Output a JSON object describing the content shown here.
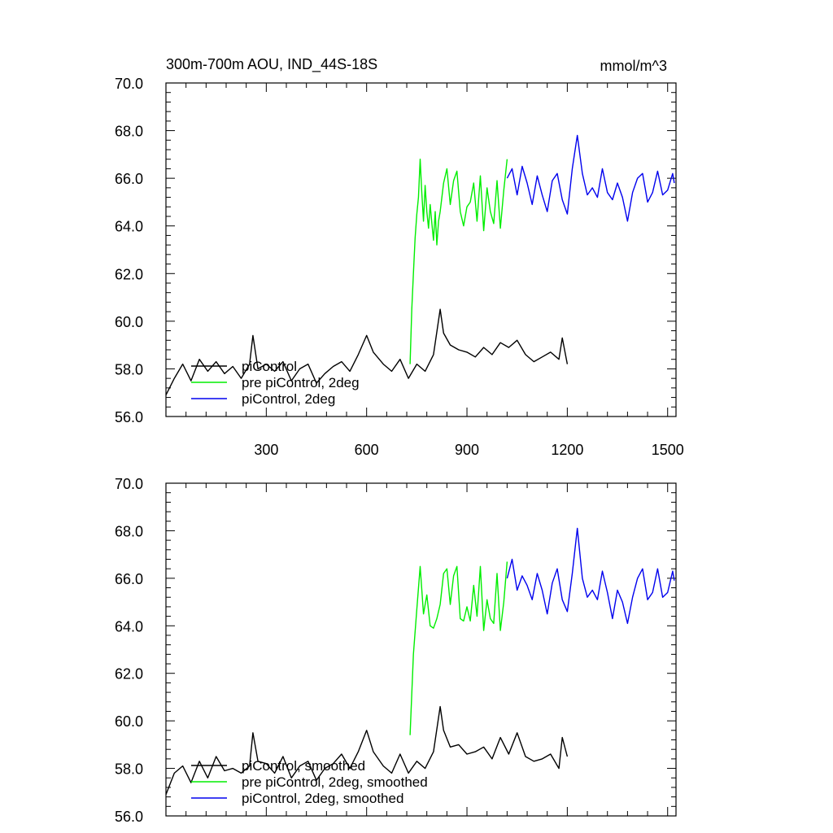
{
  "figure": {
    "title_left": "300m-700m AOU, IND_44S-18S",
    "title_right": "mmol/m^3"
  },
  "chart_data": [
    {
      "type": "line",
      "xlim": [
        0,
        1525
      ],
      "ylim": [
        56.0,
        70.0
      ],
      "xticks": [
        300,
        600,
        900,
        1200,
        1500
      ],
      "xtick_labels_shown": true,
      "yticks": [
        56.0,
        58.0,
        60.0,
        62.0,
        64.0,
        66.0,
        68.0,
        70.0
      ],
      "legend_position": "bottom-left",
      "series": [
        {
          "name": "piControl",
          "color": "#000000",
          "x": [
            0,
            25,
            50,
            75,
            100,
            125,
            150,
            175,
            200,
            225,
            250,
            260,
            275,
            300,
            325,
            350,
            375,
            400,
            425,
            450,
            475,
            500,
            525,
            550,
            575,
            600,
            620,
            650,
            675,
            700,
            725,
            750,
            775,
            800,
            820,
            830,
            850,
            875,
            900,
            925,
            950,
            975,
            1000,
            1025,
            1050,
            1075,
            1100,
            1125,
            1150,
            1175,
            1185,
            1200
          ],
          "y": [
            56.9,
            57.6,
            58.2,
            57.5,
            58.4,
            57.9,
            58.3,
            57.8,
            58.1,
            57.6,
            58.2,
            59.4,
            58.0,
            58.2,
            57.9,
            58.3,
            57.5,
            58.0,
            58.2,
            57.4,
            57.8,
            58.1,
            58.3,
            57.9,
            58.6,
            59.4,
            58.7,
            58.2,
            57.9,
            58.4,
            57.6,
            58.2,
            57.9,
            58.6,
            60.5,
            59.5,
            59.0,
            58.8,
            58.7,
            58.5,
            58.9,
            58.6,
            59.1,
            58.9,
            59.2,
            58.6,
            58.3,
            58.5,
            58.7,
            58.4,
            59.3,
            58.2
          ]
        },
        {
          "name": "pre piControl, 2deg",
          "color": "#00ee00",
          "x": [
            730,
            735,
            740,
            745,
            750,
            755,
            760,
            765,
            770,
            775,
            780,
            785,
            790,
            795,
            800,
            805,
            810,
            815,
            820,
            830,
            840,
            850,
            860,
            870,
            880,
            890,
            900,
            910,
            920,
            930,
            940,
            950,
            960,
            970,
            980,
            990,
            1000,
            1010,
            1020
          ],
          "y": [
            58.2,
            60.5,
            62.0,
            63.5,
            64.5,
            65.2,
            66.8,
            65.4,
            64.2,
            65.7,
            64.6,
            63.9,
            64.9,
            64.1,
            63.4,
            64.6,
            63.2,
            64.2,
            64.6,
            65.8,
            66.4,
            64.9,
            65.9,
            66.3,
            64.6,
            64.0,
            64.8,
            65.0,
            65.8,
            64.2,
            66.1,
            63.8,
            65.6,
            64.6,
            64.1,
            65.9,
            63.9,
            65.5,
            66.8
          ]
        },
        {
          "name": "piControl, 2deg",
          "color": "#0000ee",
          "x": [
            1020,
            1035,
            1050,
            1065,
            1080,
            1095,
            1110,
            1125,
            1140,
            1155,
            1170,
            1185,
            1200,
            1215,
            1230,
            1245,
            1260,
            1275,
            1290,
            1305,
            1320,
            1335,
            1350,
            1365,
            1380,
            1395,
            1410,
            1425,
            1440,
            1455,
            1470,
            1485,
            1500,
            1515,
            1520
          ],
          "y": [
            66.0,
            66.4,
            65.3,
            66.5,
            65.8,
            64.9,
            66.1,
            65.3,
            64.6,
            65.9,
            66.2,
            65.1,
            64.5,
            66.4,
            67.8,
            66.2,
            65.3,
            65.6,
            65.2,
            66.4,
            65.4,
            65.1,
            65.8,
            65.2,
            64.2,
            65.4,
            66.0,
            66.2,
            65.0,
            65.4,
            66.3,
            65.3,
            65.5,
            66.2,
            65.8
          ]
        }
      ]
    },
    {
      "type": "line",
      "xlim": [
        0,
        1525
      ],
      "ylim": [
        56.0,
        70.0
      ],
      "xticks": [
        300,
        600,
        900,
        1200,
        1500
      ],
      "xtick_labels_shown": false,
      "yticks": [
        56.0,
        58.0,
        60.0,
        62.0,
        64.0,
        66.0,
        68.0,
        70.0
      ],
      "legend_position": "bottom-left",
      "series": [
        {
          "name": "piControl, smoothed",
          "color": "#000000",
          "x": [
            0,
            25,
            50,
            75,
            100,
            125,
            150,
            175,
            200,
            225,
            250,
            260,
            275,
            300,
            325,
            350,
            375,
            400,
            425,
            450,
            475,
            500,
            525,
            550,
            575,
            600,
            620,
            650,
            675,
            700,
            725,
            750,
            775,
            800,
            820,
            830,
            850,
            875,
            900,
            925,
            950,
            975,
            1000,
            1025,
            1050,
            1075,
            1100,
            1125,
            1150,
            1175,
            1185,
            1200
          ],
          "y": [
            56.9,
            57.8,
            58.1,
            57.4,
            58.3,
            57.6,
            58.5,
            57.9,
            58.0,
            57.8,
            58.1,
            59.5,
            58.3,
            58.2,
            57.8,
            58.5,
            57.6,
            58.1,
            58.3,
            57.5,
            58.0,
            58.2,
            58.6,
            58.0,
            58.7,
            59.6,
            58.7,
            58.1,
            57.8,
            58.6,
            57.8,
            58.3,
            58.0,
            58.7,
            60.6,
            59.6,
            58.9,
            59.0,
            58.6,
            58.7,
            58.9,
            58.4,
            59.3,
            58.6,
            59.5,
            58.5,
            58.3,
            58.4,
            58.6,
            58.0,
            59.3,
            58.5
          ]
        },
        {
          "name": "pre piControl, 2deg, smoothed",
          "color": "#00ee00",
          "x": [
            730,
            740,
            750,
            760,
            770,
            780,
            790,
            800,
            810,
            820,
            830,
            840,
            850,
            860,
            870,
            880,
            890,
            900,
            910,
            920,
            930,
            940,
            950,
            960,
            970,
            980,
            990,
            1000,
            1010,
            1020
          ],
          "y": [
            59.4,
            62.8,
            64.7,
            66.5,
            64.5,
            65.3,
            64.0,
            63.9,
            64.3,
            64.9,
            66.2,
            66.4,
            64.9,
            66.1,
            66.5,
            64.3,
            64.2,
            64.8,
            64.2,
            65.7,
            64.4,
            66.5,
            63.8,
            65.1,
            64.3,
            64.1,
            66.2,
            63.8,
            65.0,
            66.7
          ]
        },
        {
          "name": "piControl, 2deg, smoothed",
          "color": "#0000ee",
          "x": [
            1020,
            1035,
            1050,
            1065,
            1080,
            1095,
            1110,
            1125,
            1140,
            1155,
            1170,
            1185,
            1200,
            1215,
            1230,
            1245,
            1260,
            1275,
            1290,
            1305,
            1320,
            1335,
            1350,
            1365,
            1380,
            1395,
            1410,
            1425,
            1440,
            1455,
            1470,
            1485,
            1500,
            1515,
            1520
          ],
          "y": [
            66.0,
            66.8,
            65.5,
            66.1,
            65.7,
            65.1,
            66.2,
            65.5,
            64.5,
            65.8,
            66.4,
            65.1,
            64.6,
            66.2,
            68.1,
            66.0,
            65.2,
            65.5,
            65.1,
            66.3,
            65.4,
            64.3,
            65.5,
            65.0,
            64.1,
            65.2,
            66.0,
            66.4,
            65.1,
            65.4,
            66.4,
            65.2,
            65.4,
            66.3,
            65.9
          ]
        }
      ]
    }
  ]
}
